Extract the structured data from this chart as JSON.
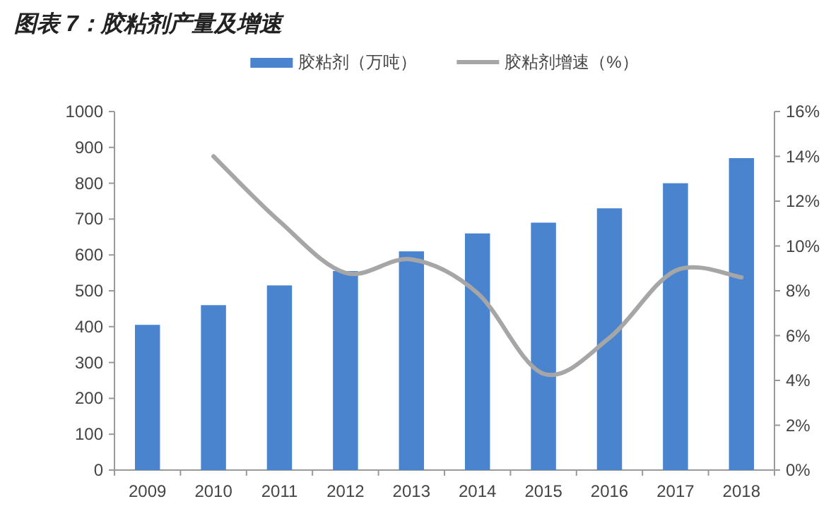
{
  "chart_data": {
    "type": "bar",
    "title": "图表 7：胶粘剂产量及增速",
    "categories": [
      "2009",
      "2010",
      "2011",
      "2012",
      "2013",
      "2014",
      "2015",
      "2016",
      "2017",
      "2018"
    ],
    "series": [
      {
        "name": "胶粘剂（万吨）",
        "color": "#4a84cf",
        "values": [
          405,
          460,
          515,
          555,
          610,
          660,
          690,
          730,
          800,
          870
        ]
      },
      {
        "name": "胶粘剂增速（%）",
        "type": "line",
        "axis": "y2",
        "color": "#a6a6a6",
        "values": [
          null,
          14.0,
          11.1,
          8.8,
          9.4,
          7.9,
          4.3,
          5.9,
          8.9,
          8.6
        ]
      }
    ],
    "ylim": [
      0,
      1000
    ],
    "yticks": [
      0,
      100,
      200,
      300,
      400,
      500,
      600,
      700,
      800,
      900,
      1000
    ],
    "y2lim": [
      0,
      16
    ],
    "y2ticks": [
      {
        "value": 0,
        "label": "0%"
      },
      {
        "value": 2,
        "label": "2%"
      },
      {
        "value": 4,
        "label": "4%"
      },
      {
        "value": 6,
        "label": "6%"
      },
      {
        "value": 8,
        "label": "8%"
      },
      {
        "value": 10,
        "label": "10%"
      },
      {
        "value": 12,
        "label": "12%"
      },
      {
        "value": 14,
        "label": "14%"
      },
      {
        "value": 16,
        "label": "16%"
      }
    ],
    "legend": "top",
    "grid": false
  }
}
